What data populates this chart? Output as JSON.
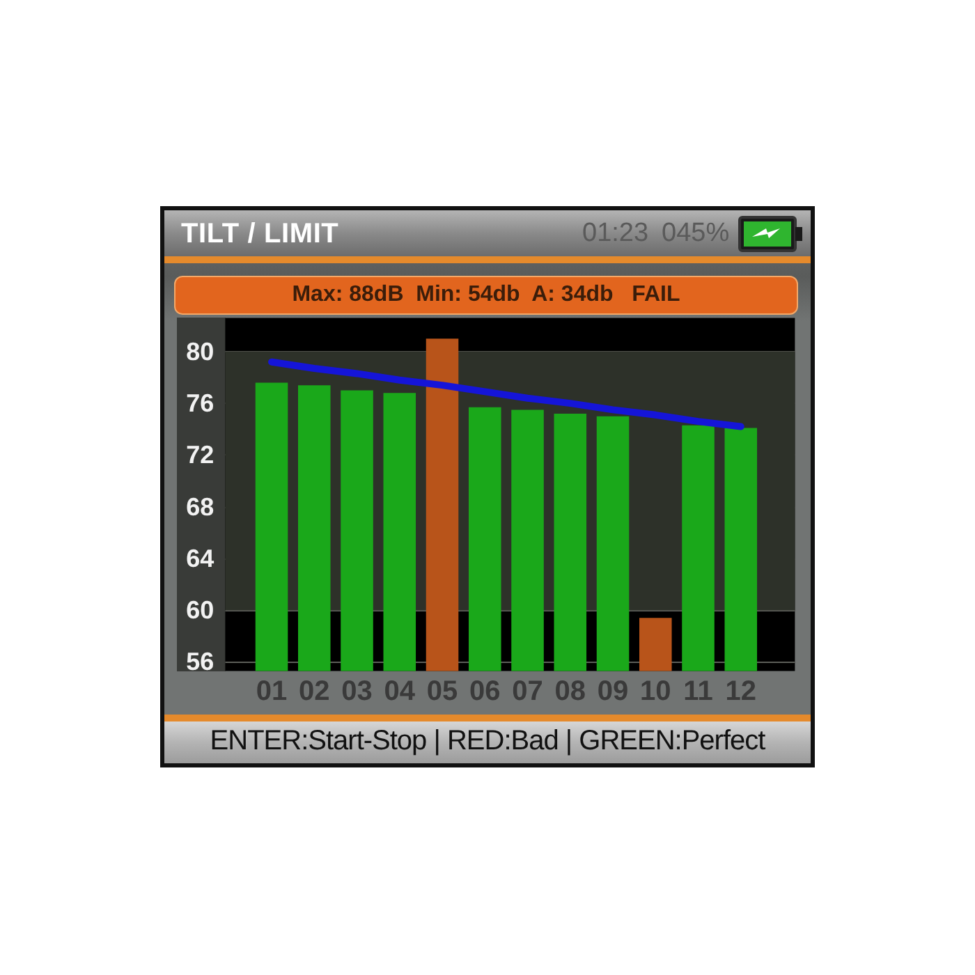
{
  "chart_data": {
    "type": "bar",
    "title": "TILT / LIMIT",
    "subtitle": "Max: 88dB  Min: 54db  A: 34db   FAIL",
    "annotations": [
      "01:23",
      "045%",
      "ENTER:Start-Stop | RED:Bad | GREEN:Perfect"
    ],
    "categories": [
      "01",
      "02",
      "03",
      "04",
      "05",
      "06",
      "07",
      "08",
      "09",
      "10",
      "11",
      "12"
    ],
    "series": [
      {
        "colors": [
          "#1aa81a",
          "#1aa81a",
          "#1aa81a",
          "#1aa81a",
          "#b8541a",
          "#1aa81a",
          "#1aa81a",
          "#1aa81a",
          "#1aa81a",
          "#b8541a",
          "#1aa81a",
          "#1aa81a"
        ],
        "values": [
          77.6,
          77.4,
          77.0,
          76.8,
          81.0,
          75.7,
          75.5,
          75.2,
          75.0,
          59.4,
          74.3,
          74.1
        ]
      },
      {
        "type": "line",
        "color": "#1515d8",
        "values": [
          79.2,
          78.7,
          78.3,
          77.8,
          77.4,
          76.9,
          76.4,
          76.0,
          75.5,
          75.1,
          74.6,
          74.2
        ]
      }
    ],
    "ylim": [
      55.3,
      82.6
    ],
    "yticks": [
      56,
      60,
      64,
      68,
      72,
      76,
      80
    ],
    "grid": "y",
    "marker": "none",
    "line_style": "solid",
    "bands": [
      {
        "axis": "y",
        "from": 60,
        "to": 80,
        "color": "#2d3129"
      }
    ]
  }
}
